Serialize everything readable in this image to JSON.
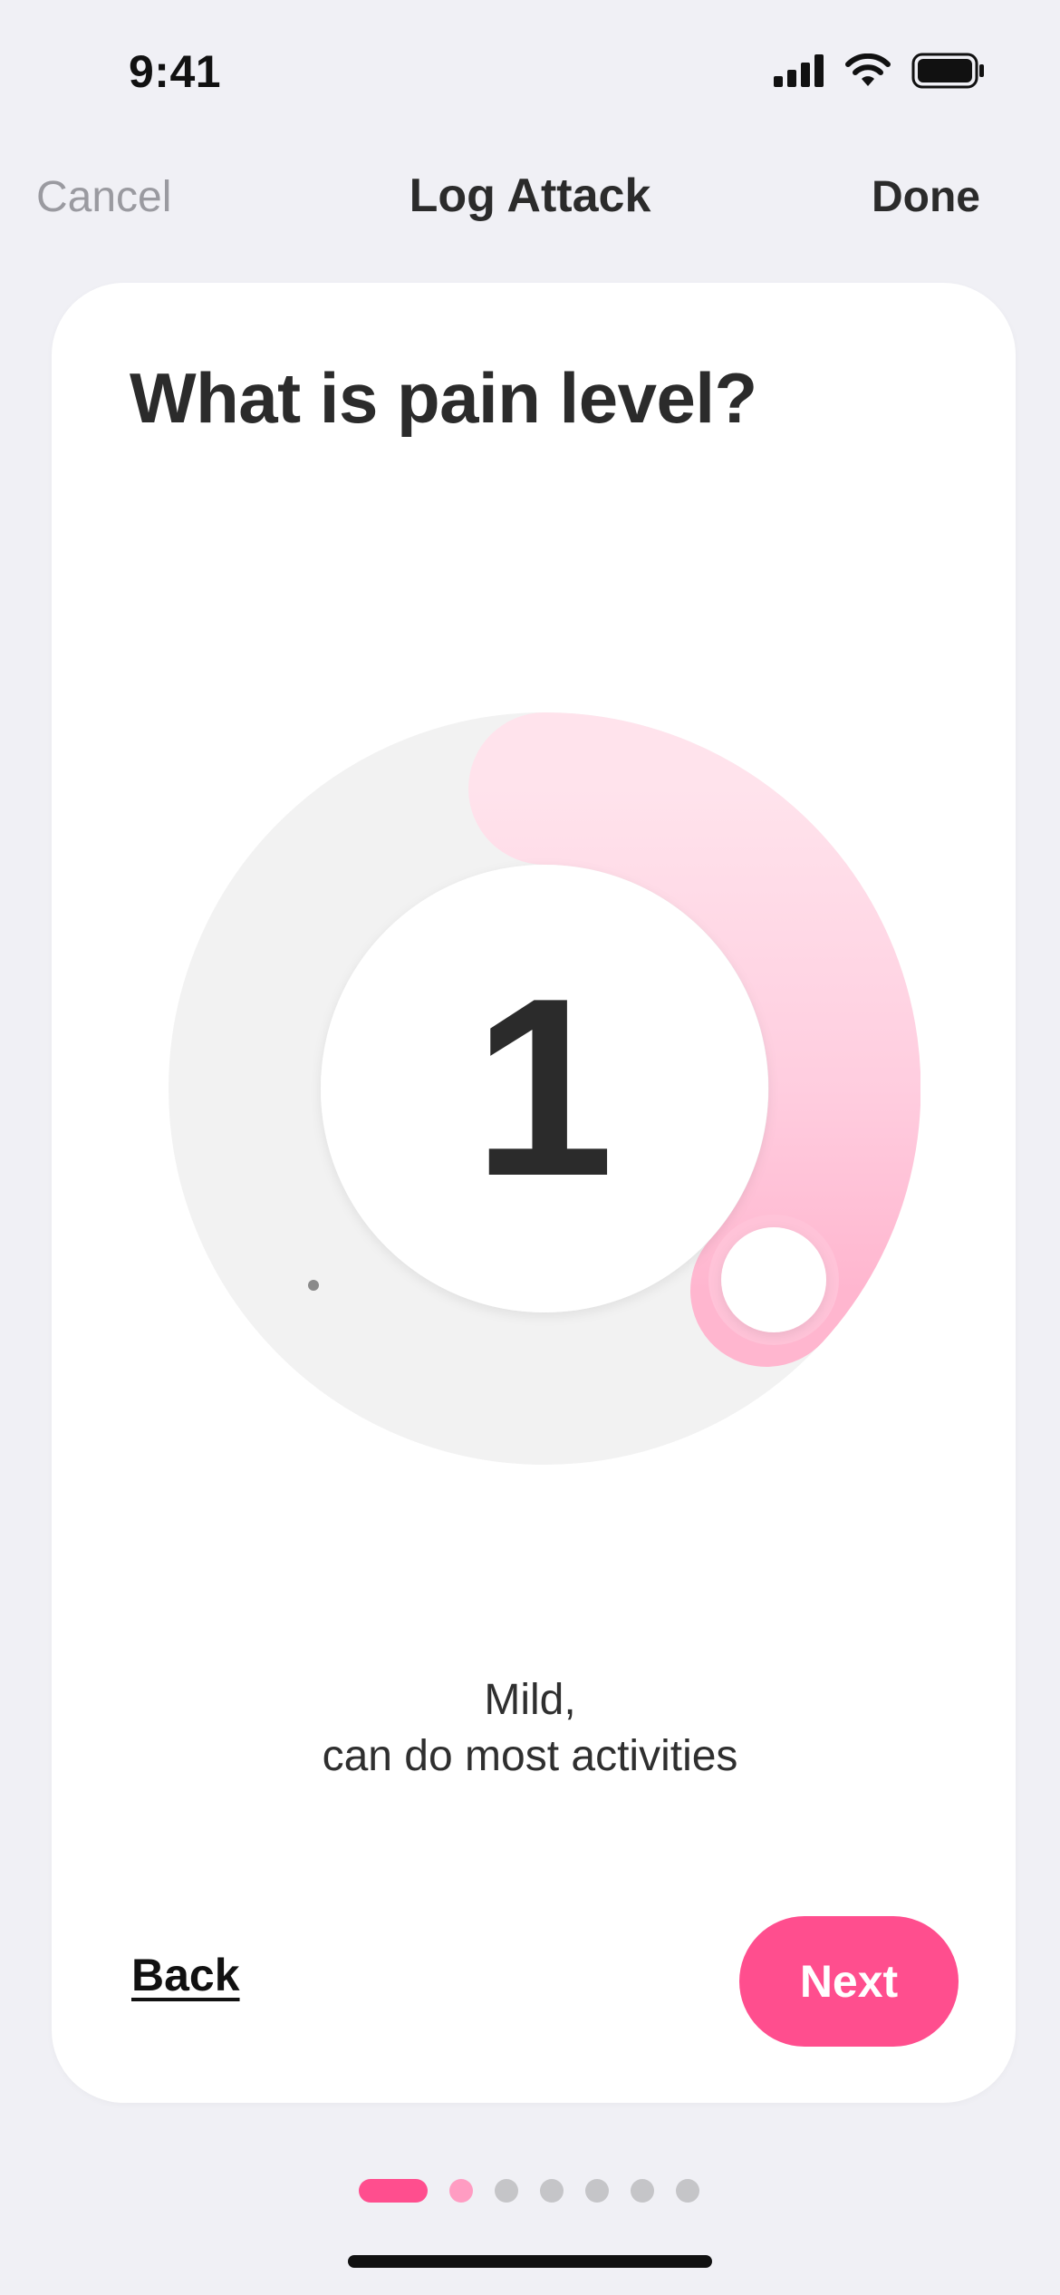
{
  "status_bar": {
    "time": "9:41"
  },
  "nav": {
    "cancel_label": "Cancel",
    "title": "Log Attack",
    "done_label": "Done"
  },
  "card": {
    "question": "What is pain level?",
    "pain_level": "1",
    "description_line1": "Mild,",
    "description_line2": "can do most activities",
    "back_label": "Back",
    "next_label": "Next"
  },
  "pager": {
    "total_steps": 7,
    "current_step": 1
  },
  "colors": {
    "accent": "#FF4E8E",
    "accent_light": "#FFD6E6",
    "track": "#F2F2F2",
    "background": "#F0F0F5"
  }
}
